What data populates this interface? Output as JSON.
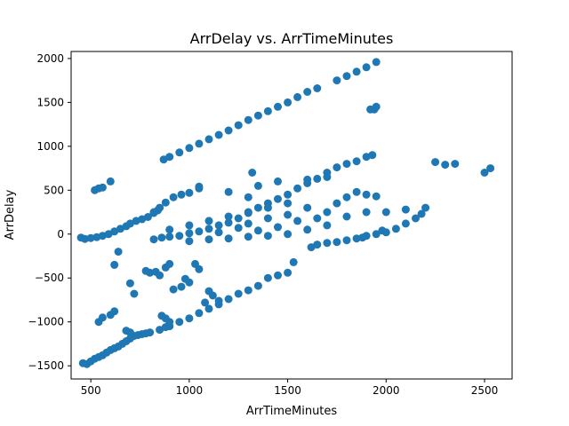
{
  "chart_data": {
    "type": "scatter",
    "title": "ArrDelay vs. ArrTimeMinutes",
    "xlabel": "ArrTimeMinutes",
    "ylabel": "ArrDelay",
    "xlim": [
      400,
      2640
    ],
    "ylim": [
      -1650,
      2080
    ],
    "xticks": [
      500,
      1000,
      1500,
      2000,
      2500
    ],
    "yticks": [
      -1500,
      -1000,
      -500,
      0,
      500,
      1000,
      1500,
      2000
    ],
    "xtick_labels": [
      "500",
      "1000",
      "1500",
      "2000",
      "2500"
    ],
    "ytick_labels": [
      "−1500",
      "−1000",
      "−500",
      "0",
      "500",
      "1000",
      "1500",
      "2000"
    ],
    "grid": false,
    "marker_color": "#1f77b4",
    "series": [
      {
        "name": "",
        "points": [
          [
            450,
            -40
          ],
          [
            470,
            -55
          ],
          [
            500,
            -45
          ],
          [
            530,
            -35
          ],
          [
            560,
            -20
          ],
          [
            590,
            0
          ],
          [
            620,
            30
          ],
          [
            650,
            60
          ],
          [
            680,
            90
          ],
          [
            700,
            120
          ],
          [
            730,
            150
          ],
          [
            760,
            170
          ],
          [
            790,
            195
          ],
          [
            820,
            240
          ],
          [
            840,
            270
          ],
          [
            520,
            500
          ],
          [
            540,
            520
          ],
          [
            560,
            530
          ],
          [
            600,
            600
          ],
          [
            820,
            250
          ],
          [
            850,
            300
          ],
          [
            880,
            360
          ],
          [
            920,
            420
          ],
          [
            960,
            450
          ],
          [
            1000,
            470
          ],
          [
            1050,
            520
          ],
          [
            870,
            850
          ],
          [
            900,
            880
          ],
          [
            950,
            930
          ],
          [
            1000,
            980
          ],
          [
            1050,
            1030
          ],
          [
            1100,
            1080
          ],
          [
            1150,
            1130
          ],
          [
            1200,
            1180
          ],
          [
            1250,
            1240
          ],
          [
            1300,
            1300
          ],
          [
            1350,
            1350
          ],
          [
            1400,
            1400
          ],
          [
            1450,
            1450
          ],
          [
            1500,
            1500
          ],
          [
            1550,
            1560
          ],
          [
            1600,
            1620
          ],
          [
            1650,
            1660
          ],
          [
            1750,
            1750
          ],
          [
            1800,
            1800
          ],
          [
            1850,
            1850
          ],
          [
            1900,
            1900
          ],
          [
            1950,
            1960
          ],
          [
            1940,
            1420
          ],
          [
            1950,
            1450
          ],
          [
            1920,
            1420
          ],
          [
            820,
            -60
          ],
          [
            860,
            -40
          ],
          [
            900,
            -30
          ],
          [
            950,
            -20
          ],
          [
            1000,
            10
          ],
          [
            1050,
            30
          ],
          [
            1100,
            60
          ],
          [
            1150,
            100
          ],
          [
            1200,
            130
          ],
          [
            1250,
            180
          ],
          [
            1300,
            240
          ],
          [
            1350,
            300
          ],
          [
            1400,
            350
          ],
          [
            1450,
            400
          ],
          [
            1500,
            450
          ],
          [
            1550,
            520
          ],
          [
            1600,
            580
          ],
          [
            1650,
            630
          ],
          [
            1700,
            700
          ],
          [
            1750,
            760
          ],
          [
            1800,
            800
          ],
          [
            1850,
            830
          ],
          [
            1900,
            880
          ],
          [
            1930,
            900
          ],
          [
            900,
            50
          ],
          [
            1000,
            100
          ],
          [
            1100,
            150
          ],
          [
            1200,
            200
          ],
          [
            1300,
            250
          ],
          [
            1400,
            300
          ],
          [
            1500,
            350
          ],
          [
            1600,
            300
          ],
          [
            1700,
            250
          ],
          [
            1800,
            200
          ],
          [
            1900,
            250
          ],
          [
            1000,
            -80
          ],
          [
            1100,
            -60
          ],
          [
            1200,
            -50
          ],
          [
            1300,
            -30
          ],
          [
            1400,
            -20
          ],
          [
            1500,
            0
          ],
          [
            1600,
            50
          ],
          [
            1300,
            120
          ],
          [
            1400,
            180
          ],
          [
            1500,
            220
          ],
          [
            1550,
            150
          ],
          [
            1450,
            80
          ],
          [
            1350,
            40
          ],
          [
            1250,
            70
          ],
          [
            1150,
            20
          ],
          [
            1700,
            100
          ],
          [
            1650,
            180
          ],
          [
            1750,
            350
          ],
          [
            1800,
            420
          ],
          [
            1850,
            480
          ],
          [
            1900,
            450
          ],
          [
            1950,
            430
          ],
          [
            1320,
            700
          ],
          [
            1050,
            540
          ],
          [
            1200,
            480
          ],
          [
            1300,
            420
          ],
          [
            1350,
            550
          ],
          [
            1450,
            600
          ],
          [
            1600,
            620
          ],
          [
            1700,
            650
          ],
          [
            1620,
            -150
          ],
          [
            1700,
            -100
          ],
          [
            1750,
            -90
          ],
          [
            1800,
            -70
          ],
          [
            1850,
            -50
          ],
          [
            1900,
            -20
          ],
          [
            1950,
            0
          ],
          [
            2000,
            20
          ],
          [
            2050,
            60
          ],
          [
            2100,
            120
          ],
          [
            2150,
            180
          ],
          [
            2180,
            230
          ],
          [
            1650,
            -120
          ],
          [
            1880,
            -40
          ],
          [
            1980,
            40
          ],
          [
            2000,
            250
          ],
          [
            2100,
            280
          ],
          [
            2200,
            300
          ],
          [
            2250,
            820
          ],
          [
            2300,
            790
          ],
          [
            2350,
            800
          ],
          [
            2500,
            700
          ],
          [
            2530,
            750
          ],
          [
            460,
            -1470
          ],
          [
            480,
            -1480
          ],
          [
            500,
            -1450
          ],
          [
            520,
            -1420
          ],
          [
            540,
            -1400
          ],
          [
            560,
            -1380
          ],
          [
            580,
            -1350
          ],
          [
            600,
            -1320
          ],
          [
            620,
            -1300
          ],
          [
            640,
            -1280
          ],
          [
            660,
            -1250
          ],
          [
            680,
            -1220
          ],
          [
            700,
            -1190
          ],
          [
            720,
            -1160
          ],
          [
            740,
            -1150
          ],
          [
            760,
            -1140
          ],
          [
            780,
            -1130
          ],
          [
            800,
            -1120
          ],
          [
            850,
            -1090
          ],
          [
            880,
            -1060
          ],
          [
            900,
            -1050
          ],
          [
            950,
            -1000
          ],
          [
            1000,
            -960
          ],
          [
            1050,
            -900
          ],
          [
            1100,
            -850
          ],
          [
            1150,
            -800
          ],
          [
            1200,
            -740
          ],
          [
            1250,
            -680
          ],
          [
            1300,
            -640
          ],
          [
            1350,
            -590
          ],
          [
            1400,
            -500
          ],
          [
            1450,
            -470
          ],
          [
            1500,
            -440
          ],
          [
            1530,
            -320
          ],
          [
            540,
            -1000
          ],
          [
            560,
            -950
          ],
          [
            600,
            -920
          ],
          [
            620,
            -880
          ],
          [
            680,
            -1100
          ],
          [
            700,
            -1120
          ],
          [
            860,
            -930
          ],
          [
            880,
            -960
          ],
          [
            900,
            -1000
          ],
          [
            620,
            -350
          ],
          [
            640,
            -200
          ],
          [
            700,
            -560
          ],
          [
            720,
            -680
          ],
          [
            780,
            -420
          ],
          [
            800,
            -440
          ],
          [
            830,
            -430
          ],
          [
            850,
            -470
          ],
          [
            880,
            -380
          ],
          [
            900,
            -340
          ],
          [
            920,
            -630
          ],
          [
            960,
            -600
          ],
          [
            980,
            -510
          ],
          [
            1000,
            -550
          ],
          [
            1030,
            -340
          ],
          [
            1050,
            -400
          ],
          [
            1080,
            -780
          ],
          [
            1100,
            -650
          ],
          [
            1120,
            -700
          ],
          [
            1150,
            -760
          ]
        ]
      }
    ]
  }
}
